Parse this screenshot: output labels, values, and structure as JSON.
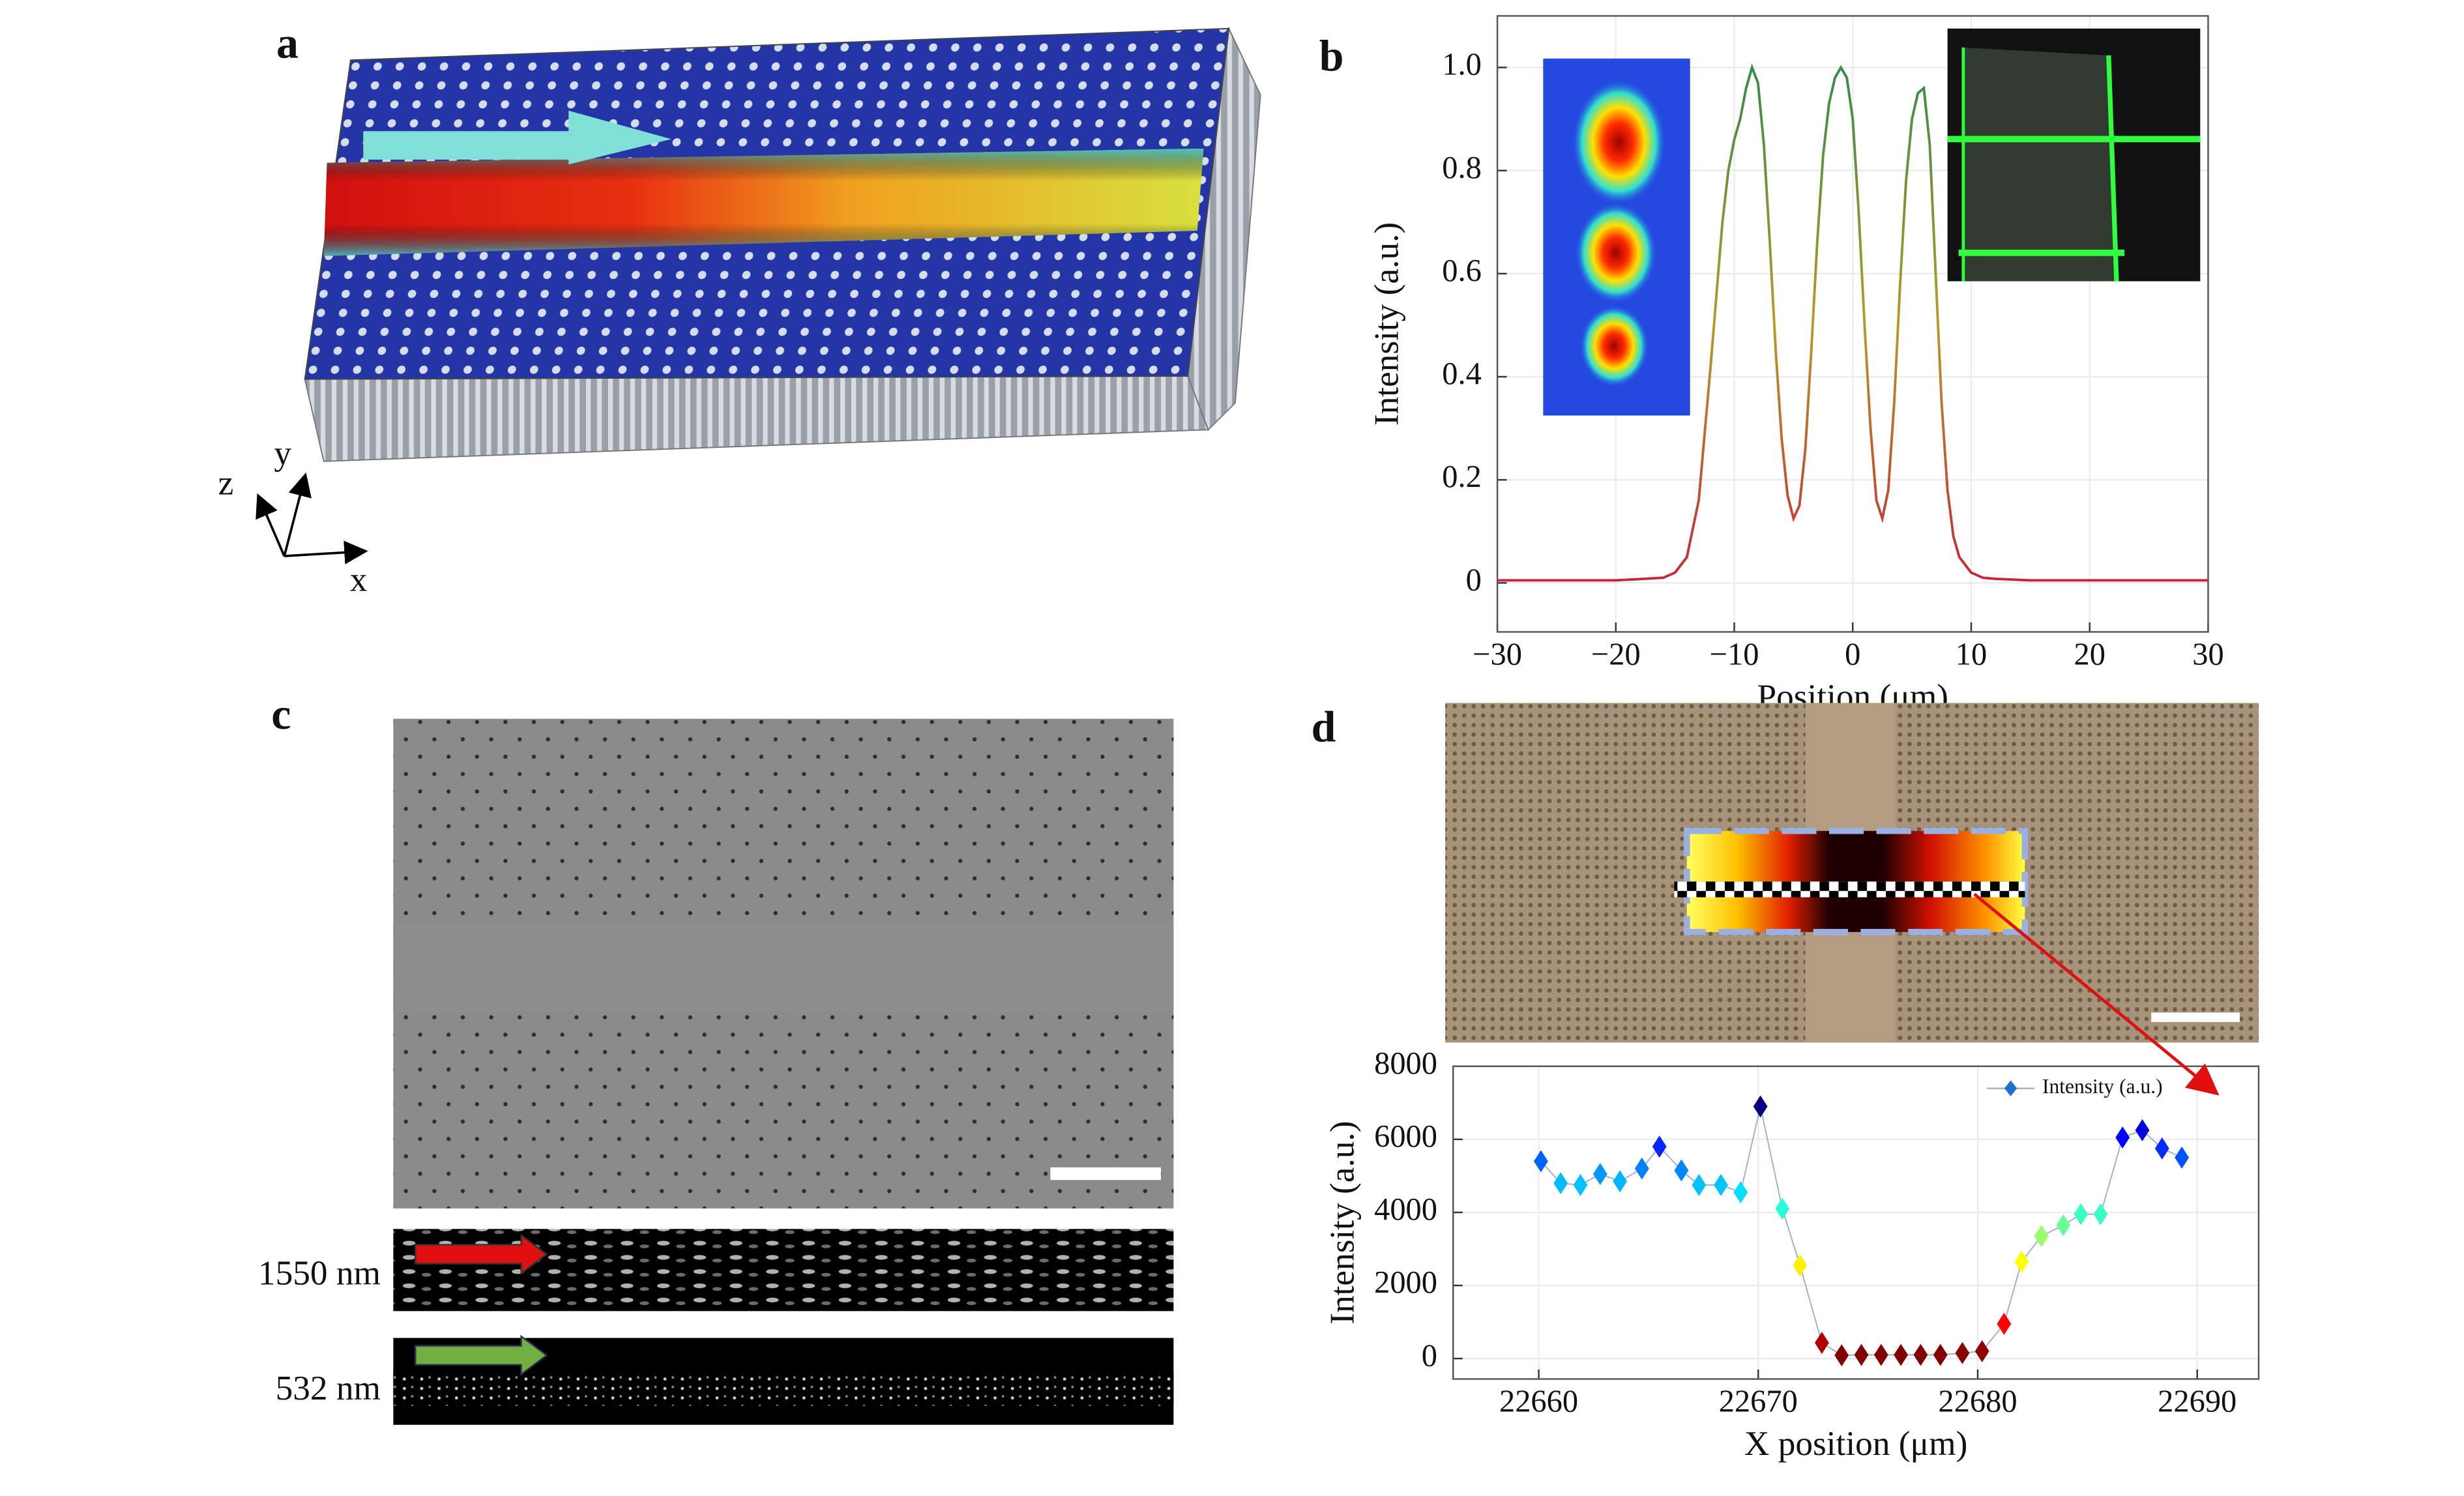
{
  "panel_labels": [
    "a",
    "b",
    "c",
    "d"
  ],
  "panel_a": {
    "axis_labels": {
      "x": "x",
      "y": "y",
      "z": "z"
    }
  },
  "panel_c": {
    "wavelength_labels": [
      "1550 nm",
      "532 nm"
    ]
  },
  "chart_data": [
    {
      "type": "line",
      "xlabel": "Position (μm)",
      "ylabel": "Intensity (a.u.)",
      "x": [
        -30,
        -20,
        -16,
        -15,
        -14,
        -13,
        -12,
        -11,
        -10.5,
        -10,
        -9.5,
        -9,
        -8.5,
        -8,
        -7.5,
        -7,
        -6.5,
        -6,
        -5.5,
        -5,
        -4.5,
        -4,
        -3.5,
        -3,
        -2.5,
        -2,
        -1.5,
        -1,
        -0.5,
        0,
        0.5,
        1,
        1.5,
        2,
        2.5,
        3,
        3.5,
        4,
        4.5,
        5,
        5.5,
        6,
        6.5,
        7,
        7.5,
        8,
        8.5,
        9,
        10,
        11,
        12,
        15,
        20,
        30
      ],
      "values": [
        0.005,
        0.005,
        0.01,
        0.02,
        0.05,
        0.16,
        0.42,
        0.7,
        0.8,
        0.86,
        0.9,
        0.96,
        1.0,
        0.97,
        0.85,
        0.66,
        0.45,
        0.28,
        0.17,
        0.125,
        0.15,
        0.26,
        0.45,
        0.66,
        0.83,
        0.93,
        0.98,
        1.0,
        0.98,
        0.9,
        0.72,
        0.5,
        0.3,
        0.16,
        0.125,
        0.18,
        0.35,
        0.58,
        0.78,
        0.9,
        0.95,
        0.96,
        0.85,
        0.6,
        0.35,
        0.18,
        0.09,
        0.05,
        0.02,
        0.01,
        0.008,
        0.005,
        0.005,
        0.005
      ],
      "color_gradient": [
        "#c8103c",
        "#b89a28",
        "#1a8a50"
      ],
      "xlim": [
        -30,
        30
      ],
      "ylim": [
        -0.095,
        1.1
      ],
      "xticks": [
        {
          "value": -30,
          "label": "−30"
        },
        {
          "value": -20,
          "label": "−20"
        },
        {
          "value": -10,
          "label": "−10"
        },
        0,
        10,
        20,
        30
      ],
      "yticks": [
        0,
        0.2,
        0.4,
        0.6,
        0.8,
        {
          "value": 1,
          "label": "1.0"
        }
      ],
      "grid": true
    },
    {
      "type": "line",
      "marker": "diamond",
      "colormap": "jet",
      "xlabel": "X position (μm)",
      "ylabel": "Intensity (a.u.)",
      "series": [
        {
          "name": "Intensity (a.u.)",
          "color": "#1f6fd0",
          "x": [
            22660.1,
            22661.0,
            22661.9,
            22662.8,
            22663.7,
            22664.7,
            22665.5,
            22666.5,
            22667.3,
            22668.3,
            22669.2,
            22670.1,
            22671.1,
            22671.9,
            22672.9,
            22673.8,
            22674.7,
            22675.6,
            22676.5,
            22677.4,
            22678.3,
            22679.3,
            22680.2,
            22681.2,
            22682.0,
            22682.9,
            22683.9,
            22684.7,
            22685.6,
            22686.6,
            22687.5,
            22688.4,
            22689.3
          ],
          "values": [
            5400,
            4800,
            4750,
            5050,
            4850,
            5200,
            5800,
            5150,
            4750,
            4750,
            4550,
            6900,
            4100,
            2550,
            430,
            90,
            100,
            100,
            100,
            100,
            100,
            150,
            200,
            950,
            2650,
            3350,
            3650,
            3950,
            3950,
            6050,
            6250,
            5750,
            5500
          ]
        }
      ],
      "xlim": [
        22656.1,
        22692.8
      ],
      "ylim": [
        -560,
        8000
      ],
      "xticks": [
        22660,
        22670,
        22680,
        22690
      ],
      "yticks": [
        0,
        2000,
        4000,
        6000,
        8000
      ],
      "grid": true,
      "legend": "upper right"
    }
  ]
}
